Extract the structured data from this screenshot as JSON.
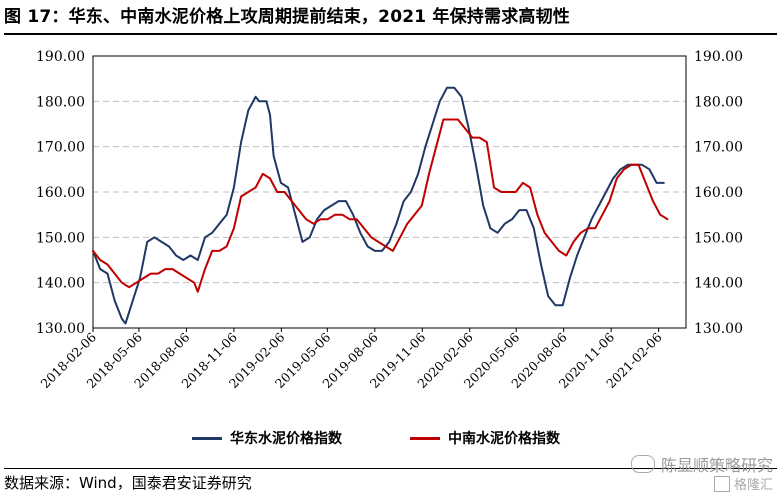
{
  "header": {
    "title": "图 17：华东、中南水泥价格上攻周期提前结束，2021 年保持需求高韧性"
  },
  "footer": {
    "source": "数据来源：Wind，国泰君安证券研究"
  },
  "watermark": {
    "text": "陈显顺策略研究",
    "badge": "格隆汇"
  },
  "colors": {
    "east": "#1f3864",
    "south": "#c00000",
    "grid": "#bfbfbf",
    "axis": "#000000"
  },
  "chart_data": {
    "type": "line",
    "y_range": [
      130,
      190
    ],
    "y_ticks": [
      "130.00",
      "140.00",
      "150.00",
      "160.00",
      "170.00",
      "180.00",
      "190.00"
    ],
    "x_range": [
      "2018-02-06",
      "2021-03-31"
    ],
    "x_ticks": [
      "2018-02-06",
      "2018-05-06",
      "2018-08-06",
      "2018-11-06",
      "2019-02-06",
      "2019-05-06",
      "2019-08-06",
      "2019-11-06",
      "2020-02-06",
      "2020-05-06",
      "2020-08-06",
      "2020-11-06",
      "2021-02-06"
    ],
    "grid": "horizontal dashed",
    "legend_position": "bottom",
    "series": [
      {
        "name": "华东水泥价格指数",
        "color": "#1f3864",
        "points": [
          [
            "2018-02-06",
            147
          ],
          [
            "2018-02-20",
            143
          ],
          [
            "2018-03-06",
            142
          ],
          [
            "2018-03-20",
            136
          ],
          [
            "2018-04-03",
            132
          ],
          [
            "2018-04-10",
            131
          ],
          [
            "2018-04-24",
            136
          ],
          [
            "2018-05-08",
            141
          ],
          [
            "2018-05-22",
            149
          ],
          [
            "2018-06-05",
            150
          ],
          [
            "2018-06-19",
            149
          ],
          [
            "2018-07-03",
            148
          ],
          [
            "2018-07-17",
            146
          ],
          [
            "2018-07-31",
            145
          ],
          [
            "2018-08-14",
            146
          ],
          [
            "2018-08-28",
            145
          ],
          [
            "2018-09-11",
            150
          ],
          [
            "2018-09-25",
            151
          ],
          [
            "2018-10-09",
            153
          ],
          [
            "2018-10-23",
            155
          ],
          [
            "2018-11-06",
            161
          ],
          [
            "2018-11-20",
            171
          ],
          [
            "2018-12-04",
            178
          ],
          [
            "2018-12-18",
            181
          ],
          [
            "2018-12-25",
            180
          ],
          [
            "2019-01-08",
            180
          ],
          [
            "2019-01-15",
            177
          ],
          [
            "2019-01-22",
            168
          ],
          [
            "2019-02-05",
            162
          ],
          [
            "2019-02-19",
            161
          ],
          [
            "2019-03-05",
            155
          ],
          [
            "2019-03-19",
            149
          ],
          [
            "2019-04-02",
            150
          ],
          [
            "2019-04-16",
            154
          ],
          [
            "2019-04-30",
            156
          ],
          [
            "2019-05-14",
            157
          ],
          [
            "2019-05-28",
            158
          ],
          [
            "2019-06-11",
            158
          ],
          [
            "2019-06-25",
            155
          ],
          [
            "2019-07-09",
            151
          ],
          [
            "2019-07-23",
            148
          ],
          [
            "2019-08-06",
            147
          ],
          [
            "2019-08-20",
            147
          ],
          [
            "2019-09-03",
            149
          ],
          [
            "2019-09-17",
            153
          ],
          [
            "2019-10-01",
            158
          ],
          [
            "2019-10-15",
            160
          ],
          [
            "2019-10-29",
            164
          ],
          [
            "2019-11-12",
            170
          ],
          [
            "2019-11-26",
            175
          ],
          [
            "2019-12-10",
            180
          ],
          [
            "2019-12-24",
            183
          ],
          [
            "2020-01-07",
            183
          ],
          [
            "2020-01-21",
            181
          ],
          [
            "2020-02-04",
            174
          ],
          [
            "2020-02-18",
            166
          ],
          [
            "2020-03-03",
            157
          ],
          [
            "2020-03-17",
            152
          ],
          [
            "2020-03-31",
            151
          ],
          [
            "2020-04-14",
            153
          ],
          [
            "2020-04-28",
            154
          ],
          [
            "2020-05-12",
            156
          ],
          [
            "2020-05-26",
            156
          ],
          [
            "2020-06-09",
            152
          ],
          [
            "2020-06-23",
            144
          ],
          [
            "2020-07-07",
            137
          ],
          [
            "2020-07-21",
            135
          ],
          [
            "2020-08-04",
            135
          ],
          [
            "2020-08-18",
            141
          ],
          [
            "2020-09-01",
            146
          ],
          [
            "2020-09-15",
            150
          ],
          [
            "2020-09-29",
            154
          ],
          [
            "2020-10-13",
            157
          ],
          [
            "2020-10-27",
            160
          ],
          [
            "2020-11-10",
            163
          ],
          [
            "2020-11-24",
            165
          ],
          [
            "2020-12-08",
            166
          ],
          [
            "2020-12-22",
            166
          ],
          [
            "2021-01-05",
            166
          ],
          [
            "2021-01-19",
            165
          ],
          [
            "2021-02-02",
            162
          ],
          [
            "2021-02-16",
            162
          ]
        ]
      },
      {
        "name": "中南水泥价格指数",
        "color": "#c00000",
        "points": [
          [
            "2018-02-06",
            147
          ],
          [
            "2018-02-20",
            145
          ],
          [
            "2018-03-06",
            144
          ],
          [
            "2018-03-20",
            142
          ],
          [
            "2018-04-03",
            140
          ],
          [
            "2018-04-17",
            139
          ],
          [
            "2018-05-01",
            140
          ],
          [
            "2018-05-15",
            141
          ],
          [
            "2018-05-29",
            142
          ],
          [
            "2018-06-12",
            142
          ],
          [
            "2018-06-26",
            143
          ],
          [
            "2018-07-10",
            143
          ],
          [
            "2018-07-24",
            142
          ],
          [
            "2018-08-07",
            141
          ],
          [
            "2018-08-21",
            140
          ],
          [
            "2018-08-28",
            138
          ],
          [
            "2018-09-11",
            143
          ],
          [
            "2018-09-25",
            147
          ],
          [
            "2018-10-09",
            147
          ],
          [
            "2018-10-23",
            148
          ],
          [
            "2018-11-06",
            152
          ],
          [
            "2018-11-20",
            159
          ],
          [
            "2018-12-04",
            160
          ],
          [
            "2018-12-18",
            161
          ],
          [
            "2019-01-01",
            164
          ],
          [
            "2019-01-15",
            163
          ],
          [
            "2019-01-29",
            160
          ],
          [
            "2019-02-12",
            160
          ],
          [
            "2019-02-26",
            158
          ],
          [
            "2019-03-12",
            156
          ],
          [
            "2019-03-26",
            154
          ],
          [
            "2019-04-09",
            153
          ],
          [
            "2019-04-23",
            154
          ],
          [
            "2019-05-07",
            154
          ],
          [
            "2019-05-21",
            155
          ],
          [
            "2019-06-04",
            155
          ],
          [
            "2019-06-18",
            154
          ],
          [
            "2019-07-02",
            154
          ],
          [
            "2019-07-16",
            152
          ],
          [
            "2019-07-30",
            150
          ],
          [
            "2019-08-13",
            149
          ],
          [
            "2019-08-27",
            148
          ],
          [
            "2019-09-10",
            147
          ],
          [
            "2019-09-24",
            150
          ],
          [
            "2019-10-08",
            153
          ],
          [
            "2019-10-22",
            155
          ],
          [
            "2019-11-05",
            157
          ],
          [
            "2019-11-19",
            164
          ],
          [
            "2019-12-03",
            170
          ],
          [
            "2019-12-17",
            176
          ],
          [
            "2019-12-31",
            176
          ],
          [
            "2020-01-14",
            176
          ],
          [
            "2020-01-28",
            174
          ],
          [
            "2020-02-11",
            172
          ],
          [
            "2020-02-25",
            172
          ],
          [
            "2020-03-10",
            171
          ],
          [
            "2020-03-24",
            161
          ],
          [
            "2020-04-07",
            160
          ],
          [
            "2020-04-21",
            160
          ],
          [
            "2020-05-05",
            160
          ],
          [
            "2020-05-19",
            162
          ],
          [
            "2020-06-02",
            161
          ],
          [
            "2020-06-16",
            155
          ],
          [
            "2020-06-30",
            151
          ],
          [
            "2020-07-14",
            149
          ],
          [
            "2020-07-28",
            147
          ],
          [
            "2020-08-11",
            146
          ],
          [
            "2020-08-25",
            149
          ],
          [
            "2020-09-08",
            151
          ],
          [
            "2020-09-22",
            152
          ],
          [
            "2020-10-06",
            152
          ],
          [
            "2020-10-20",
            155
          ],
          [
            "2020-11-03",
            158
          ],
          [
            "2020-11-17",
            163
          ],
          [
            "2020-12-01",
            165
          ],
          [
            "2020-12-15",
            166
          ],
          [
            "2020-12-29",
            166
          ],
          [
            "2021-01-12",
            162
          ],
          [
            "2021-01-26",
            158
          ],
          [
            "2021-02-09",
            155
          ],
          [
            "2021-02-23",
            154
          ]
        ]
      }
    ]
  }
}
